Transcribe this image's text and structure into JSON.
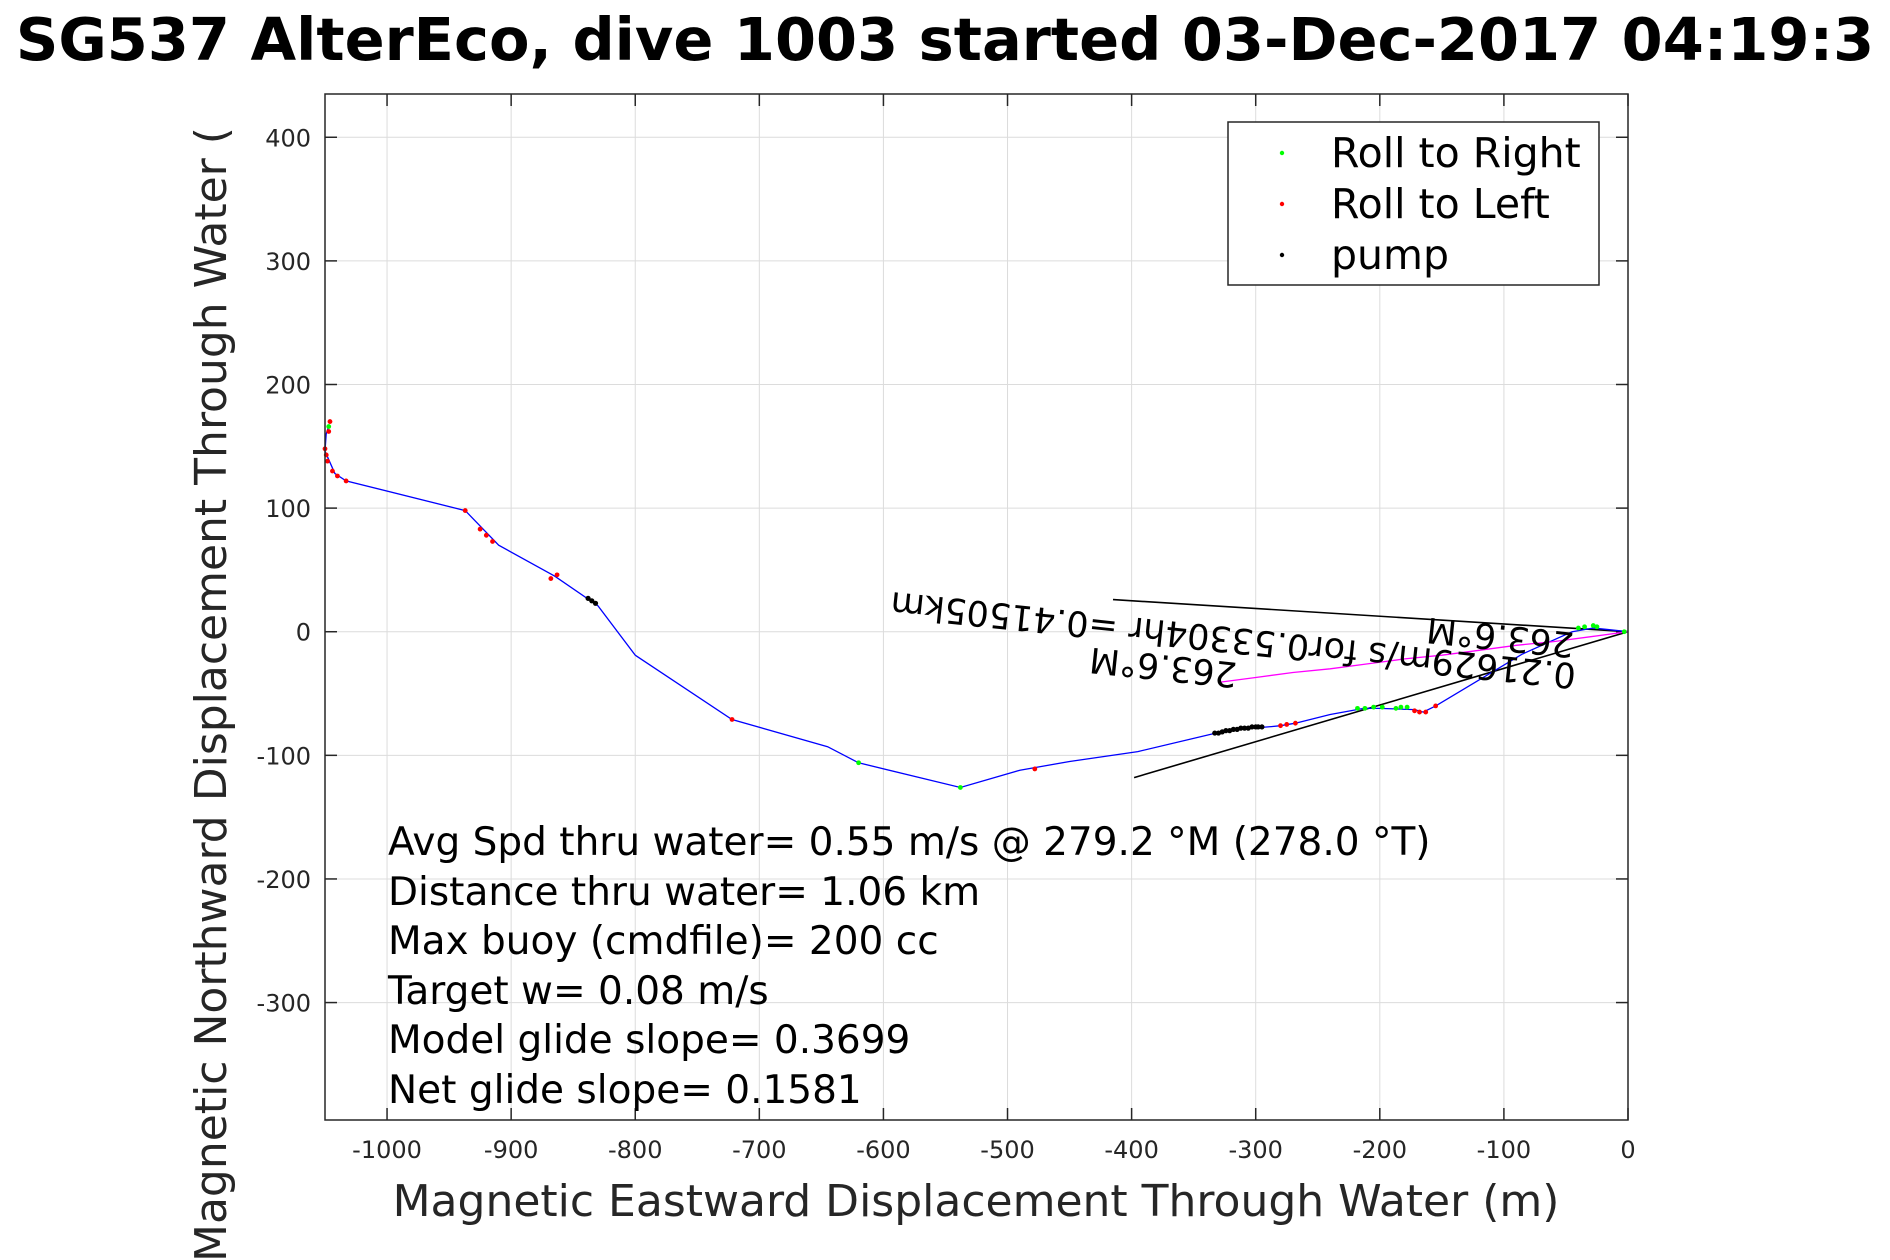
{
  "chart_data": {
    "type": "line",
    "title": "SG537 AlterEco, dive 1003 started 03-Dec-2017 04:19:3",
    "xlabel": "Magnetic Eastward Displacement Through Water (m)",
    "ylabel": "Magnetic Northward Displacement Through Water (",
    "xlim": [
      -1050,
      0
    ],
    "ylim": [
      -395,
      435
    ],
    "xticks": [
      -1000,
      -900,
      -800,
      -700,
      -600,
      -500,
      -400,
      -300,
      -200,
      -100,
      0
    ],
    "yticks": [
      -300,
      -200,
      -100,
      0,
      100,
      200,
      300,
      400
    ],
    "xtick_labels": [
      "-1000",
      "-900",
      "-800",
      "-700",
      "-600",
      "-500",
      "-400",
      "-300",
      "-200",
      "-100",
      "0"
    ],
    "ytick_labels": [
      "-300",
      "-200",
      "-100",
      "0",
      "100",
      "200",
      "300",
      "400"
    ],
    "grid": true,
    "legend_position": "top-right",
    "legend": [
      {
        "label": "Roll to Right",
        "color": "#00ff00"
      },
      {
        "label": "Roll to Left",
        "color": "#ff0000"
      },
      {
        "label": "pump",
        "color": "#000000"
      }
    ],
    "series": [
      {
        "color": "#0000ff",
        "x": [
          0,
          -18,
          -28,
          -45,
          -85,
          -155,
          -165,
          -172,
          -200,
          -213,
          -240,
          -268,
          -280,
          -290,
          -303,
          -318,
          -328,
          -395,
          -450,
          -490,
          -538,
          -620,
          -645,
          -722,
          -800,
          -830,
          -865,
          -910,
          -937,
          -1033,
          -1042,
          -1050,
          -1049,
          -1047
        ],
        "y": [
          0,
          2,
          3,
          0,
          -18,
          -60,
          -65,
          -63,
          -62,
          -62,
          -67,
          -74,
          -76,
          -77,
          -78,
          -79,
          -81,
          -97,
          -105,
          -112,
          -126,
          -106,
          -93,
          -71,
          -19,
          21,
          45,
          70,
          98,
          122,
          128,
          146,
          160,
          166
        ]
      },
      {
        "color": "#ff00ff",
        "x": [
          0,
          -30,
          -60,
          -90,
          -120,
          -150,
          -180,
          -210,
          -240,
          -270,
          -300,
          -330
        ],
        "y": [
          0,
          -4,
          -8,
          -11,
          -15,
          -19,
          -22,
          -26,
          -30,
          -33,
          -37,
          -41
        ]
      }
    ],
    "roll_right_points": {
      "x": [
        -3,
        -25,
        -28,
        -35,
        -40,
        -198,
        -205,
        -212,
        -218,
        -187,
        -183,
        -178,
        -620,
        -538,
        -1047
      ],
      "y": [
        0,
        4,
        5,
        4,
        3,
        -61,
        -61,
        -62,
        -62,
        -62,
        -61,
        -61,
        -106,
        -126,
        166
      ]
    },
    "roll_left_points": {
      "x": [
        -163,
        -168,
        -172,
        -155,
        -268,
        -275,
        -280,
        -478,
        -722,
        -863,
        -868,
        -915,
        -920,
        -925,
        -937,
        -1033,
        -1040,
        -1044,
        -1048,
        -1049,
        -1050,
        -1047,
        -1046
      ],
      "y": [
        -65,
        -65,
        -64,
        -60,
        -74,
        -75,
        -76,
        -111,
        -71,
        46,
        43,
        73,
        78,
        83,
        98,
        122,
        126,
        130,
        138,
        143,
        148,
        162,
        170
      ]
    },
    "pump_points": {
      "x": [
        -295,
        -298,
        -300,
        -303,
        -306,
        -309,
        -312,
        -315,
        -318,
        -321,
        -324,
        -327,
        -330,
        -333,
        -832,
        -835,
        -838
      ],
      "y": [
        -77,
        -77,
        -77,
        -77,
        -78,
        -78,
        -78,
        -79,
        -79,
        -80,
        -80,
        -81,
        -82,
        -82,
        23,
        25,
        27
      ]
    },
    "reference_lines": [
      {
        "x": [
          0,
          -415
        ],
        "y": [
          0,
          26
        ]
      },
      {
        "x": [
          0,
          -398
        ],
        "y": [
          0,
          -118
        ]
      }
    ],
    "annotations": [
      "Avg Spd thru water=  0.55 m/s @ 279.2 °M (278.0 °T)",
      "Distance thru water=  1.06 km",
      "Max buoy (cmdfile)= 200 cc",
      "Target w= 0.08 m/s",
      "Model glide slope= 0.3699",
      "Net glide slope= 0.1581"
    ],
    "rotated_labels": [
      "263.6°M",
      "0.21629m/s for0.53304hr =0.41505km",
      "263.6°M"
    ]
  }
}
